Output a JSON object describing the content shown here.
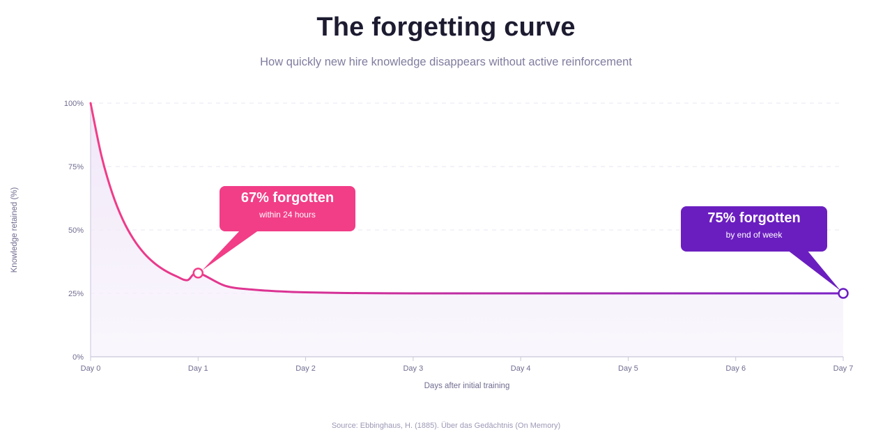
{
  "title": "The forgetting curve",
  "subtitle": "How quickly new hire knowledge disappears without active reinforcement",
  "source": "Source: Ebbinghaus, H. (1885). Über das Gedächtnis (On Memory)",
  "colors": {
    "pink": "#f23d87",
    "purple": "#6b1ec0",
    "grid": "#e8e6f0",
    "axis": "#c9c6da",
    "text": "#6f6c8f"
  },
  "chart_data": {
    "type": "line",
    "xlabel": "Days after initial training",
    "ylabel": "Knowledge retained (%)",
    "x_tick_labels": [
      "Day 0",
      "Day 1",
      "Day 2",
      "Day 3",
      "Day 4",
      "Day 5",
      "Day 6",
      "Day 7"
    ],
    "y_tick_labels": [
      "0%",
      "25%",
      "50%",
      "75%",
      "100%"
    ],
    "xlim": [
      0,
      7
    ],
    "ylim": [
      0,
      100
    ],
    "grid": true,
    "series": [
      {
        "x": [
          0,
          0.1,
          0.2,
          0.3,
          0.4,
          0.5,
          0.6,
          0.7,
          0.8,
          0.9,
          1.0,
          1.25,
          1.5,
          1.75,
          2.0,
          2.5,
          3.0,
          3.5,
          4.0,
          5.0,
          6.0,
          7.0
        ],
        "values": [
          100,
          79.4,
          64.7,
          54.0,
          46.3,
          40.7,
          36.7,
          33.8,
          31.7,
          30.2,
          33,
          28.0,
          26.5,
          25.8,
          25.4,
          25.1,
          25.0,
          25.0,
          25.0,
          25.0,
          25.0,
          25
        ]
      }
    ],
    "annotations": [
      {
        "x": 1,
        "y": 33,
        "headline": "67% forgotten",
        "detail": "within 24 hours"
      },
      {
        "x": 7,
        "y": 25,
        "headline": "75% forgotten",
        "detail": "by end of week"
      }
    ]
  }
}
